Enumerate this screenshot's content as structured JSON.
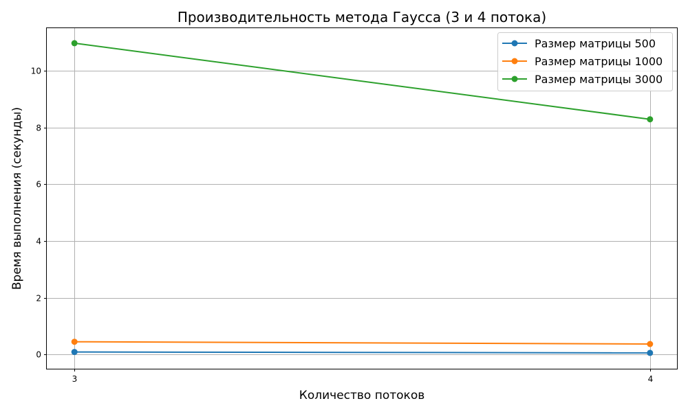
{
  "chart_data": {
    "type": "line",
    "title": "Производительность метода Гаусса (3 и 4 потока)",
    "xlabel": "Количество потоков",
    "ylabel": "Время выполнения (секунды)",
    "x": [
      3,
      4
    ],
    "xticks": [
      "3",
      "4"
    ],
    "xlim": [
      2.952,
      4.048
    ],
    "ylim": [
      -0.5,
      11.5
    ],
    "yticks": [
      0,
      2,
      4,
      6,
      8,
      10
    ],
    "grid": true,
    "legend_position": "top-right",
    "series": [
      {
        "name": "Размер матрицы 500",
        "values": [
          0.09,
          0.06
        ],
        "color": "#1f77b4"
      },
      {
        "name": "Размер матрицы 1000",
        "values": [
          0.45,
          0.37
        ],
        "color": "#ff7f0e"
      },
      {
        "name": "Размер матрицы 3000",
        "values": [
          10.97,
          8.29
        ],
        "color": "#2ca02c"
      }
    ]
  }
}
